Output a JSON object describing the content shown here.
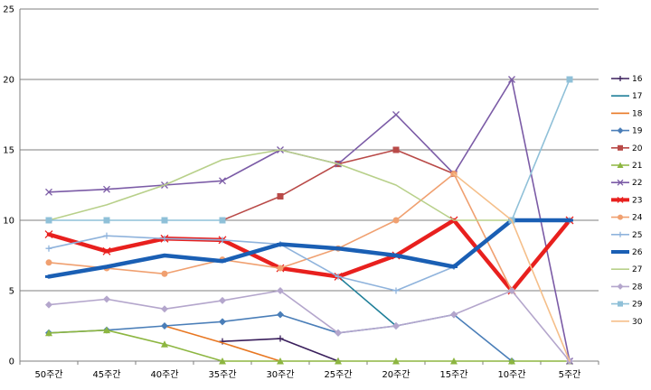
{
  "chart_data": {
    "type": "line",
    "title": "",
    "xlabel": "",
    "ylabel": "",
    "categories": [
      "50주간",
      "45주간",
      "40주간",
      "35주간",
      "30주간",
      "25주간",
      "20주간",
      "15주간",
      "10주간",
      "5주간"
    ],
    "ylim": [
      0,
      25
    ],
    "yticks": [
      "0",
      "5",
      "10",
      "15",
      "20",
      "25"
    ],
    "grid": "horizontal",
    "legend_position": "right",
    "series": [
      {
        "name": "16",
        "color": "#3a1f5c",
        "marker": "plus",
        "bold": false,
        "values": [
          null,
          null,
          null,
          1.4,
          1.6,
          0,
          null,
          null,
          null,
          null
        ]
      },
      {
        "name": "17",
        "color": "#1f7f99",
        "marker": "none",
        "bold": false,
        "values": [
          null,
          null,
          null,
          null,
          null,
          6,
          2.5,
          null,
          null,
          null
        ]
      },
      {
        "name": "18",
        "color": "#e87722",
        "marker": "none",
        "bold": false,
        "values": [
          null,
          null,
          2.5,
          1.3,
          0,
          null,
          null,
          null,
          null,
          null
        ]
      },
      {
        "name": "19",
        "color": "#4a7eb8",
        "marker": "diamond",
        "bold": false,
        "values": [
          2,
          2.2,
          2.5,
          2.8,
          3.3,
          2,
          2.5,
          3.3,
          0,
          null
        ]
      },
      {
        "name": "20",
        "color": "#b94a48",
        "marker": "square",
        "bold": false,
        "values": [
          null,
          null,
          null,
          10,
          11.7,
          14,
          15,
          13.3,
          null,
          null
        ]
      },
      {
        "name": "21",
        "color": "#8db641",
        "marker": "triangle",
        "bold": false,
        "values": [
          2,
          2.2,
          1.2,
          0,
          0,
          0,
          0,
          0,
          0,
          0
        ]
      },
      {
        "name": "22",
        "color": "#7b5ba6",
        "marker": "x",
        "bold": false,
        "values": [
          12,
          12.2,
          12.5,
          12.8,
          15,
          14,
          17.5,
          13.3,
          20,
          0
        ]
      },
      {
        "name": "23",
        "color": "#e8201e",
        "marker": "x",
        "bold": true,
        "values": [
          9,
          7.8,
          8.7,
          8.6,
          6.6,
          6,
          7.5,
          10,
          5,
          10
        ]
      },
      {
        "name": "24",
        "color": "#f0a070",
        "marker": "circle",
        "bold": false,
        "values": [
          7,
          6.6,
          6.2,
          7.2,
          6.6,
          8,
          10,
          13.3,
          5,
          null
        ]
      },
      {
        "name": "25",
        "color": "#8fb3dc",
        "marker": "plus",
        "bold": false,
        "values": [
          8,
          8.9,
          8.7,
          8.6,
          8.3,
          6,
          5,
          6.7,
          10,
          10
        ]
      },
      {
        "name": "26",
        "color": "#1a5fb4",
        "marker": "dash",
        "bold": true,
        "values": [
          6,
          6.7,
          7.5,
          7.1,
          8.3,
          8,
          7.5,
          6.7,
          10,
          10
        ]
      },
      {
        "name": "27",
        "color": "#b8d08a",
        "marker": "none",
        "bold": false,
        "values": [
          10,
          11.1,
          12.5,
          14.3,
          15,
          14,
          12.5,
          10,
          10,
          null
        ]
      },
      {
        "name": "28",
        "color": "#b4a6cc",
        "marker": "diamond",
        "bold": false,
        "values": [
          4,
          4.4,
          3.7,
          4.3,
          5,
          2,
          2.5,
          3.3,
          5,
          0
        ]
      },
      {
        "name": "29",
        "color": "#8fc0d8",
        "marker": "square",
        "bold": false,
        "values": [
          10,
          10,
          10,
          10,
          null,
          null,
          null,
          null,
          10,
          20
        ]
      },
      {
        "name": "30",
        "color": "#f5bf8a",
        "marker": "none",
        "bold": false,
        "values": [
          null,
          null,
          null,
          null,
          null,
          null,
          null,
          13.3,
          10,
          0
        ]
      }
    ]
  }
}
